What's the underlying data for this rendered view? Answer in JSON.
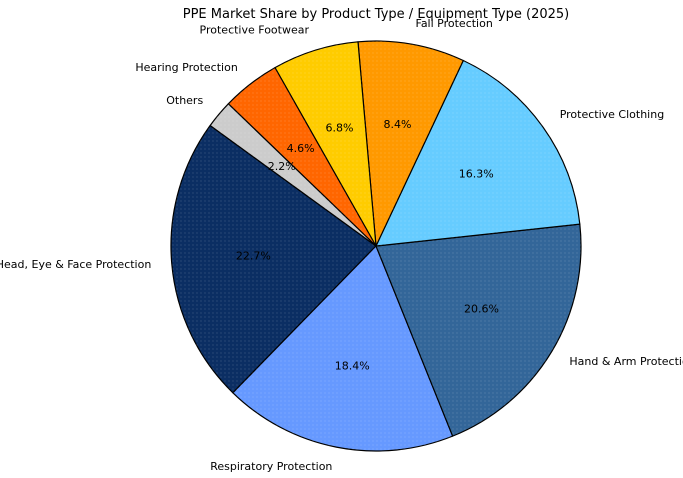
{
  "chart_data": {
    "type": "pie",
    "title": "PPE Market Share by Product Type / Equipment Type (2025)",
    "labels": [
      "Head, Eye & Face Protection",
      "Respiratory Protection",
      "Hand & Arm Protection",
      "Protective Clothing",
      "Fall Protection",
      "Protective Footwear",
      "Hearing Protection",
      "Others"
    ],
    "values": [
      22.7,
      18.4,
      20.6,
      16.3,
      8.4,
      6.8,
      4.6,
      2.2
    ],
    "value_labels": [
      "22.7%",
      "18.4%",
      "20.6%",
      "16.3%",
      "8.4%",
      "6.8%",
      "4.6%",
      "2.2%"
    ],
    "colors": [
      "#0b2e63",
      "#6699ff",
      "#336699",
      "#66ccff",
      "#ff9900",
      "#ffcc00",
      "#ff6600",
      "#cccccc"
    ],
    "start_angle_deg": 144,
    "direction": "counterclockwise",
    "edge_color": "#000000",
    "legend": "none"
  }
}
